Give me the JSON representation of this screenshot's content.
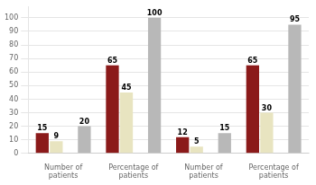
{
  "chart_data": {
    "type": "bar",
    "categories": [
      "Number of patients",
      "Percentage of patients",
      "Number of patients",
      "Percentage of patients"
    ],
    "series": [
      {
        "color": "#8B1A1A",
        "values": [
          15,
          65,
          12,
          65
        ],
        "data_labels": true
      },
      {
        "color": "#E8E4C0",
        "values": [
          9,
          45,
          5,
          30
        ],
        "data_labels": true
      },
      {
        "color": "#FFFFFF",
        "values": [
          0,
          0,
          0,
          0
        ],
        "data_labels": false
      },
      {
        "color": "#B8B8B8",
        "values": [
          20,
          100,
          15,
          95
        ],
        "data_labels": true
      }
    ],
    "ylim": [
      0,
      108
    ],
    "yticks": [
      0,
      10,
      20,
      30,
      40,
      50,
      60,
      70,
      80,
      90,
      100
    ],
    "grid": true
  }
}
